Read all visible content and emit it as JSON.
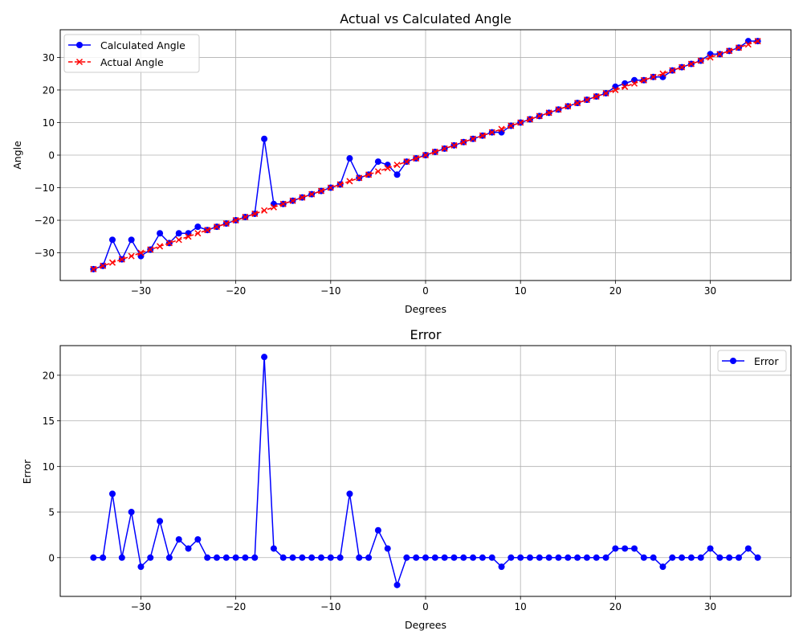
{
  "chart_data": [
    {
      "type": "line",
      "title": "Actual vs Calculated Angle",
      "xlabel": "Degrees",
      "ylabel": "Angle",
      "xlim": [
        -38.5,
        38.5
      ],
      "ylim": [
        -38.5,
        38.5
      ],
      "xticks": [
        -30,
        -20,
        -10,
        0,
        10,
        20,
        30
      ],
      "yticks": [
        -30,
        -20,
        -10,
        0,
        10,
        20,
        30
      ],
      "grid": true,
      "legend_position": "top-left",
      "x": [
        -35,
        -34,
        -33,
        -32,
        -31,
        -30,
        -29,
        -28,
        -27,
        -26,
        -25,
        -24,
        -23,
        -22,
        -21,
        -20,
        -19,
        -18,
        -17,
        -16,
        -15,
        -14,
        -13,
        -12,
        -11,
        -10,
        -9,
        -8,
        -7,
        -6,
        -5,
        -4,
        -3,
        -2,
        -1,
        0,
        1,
        2,
        3,
        4,
        5,
        6,
        7,
        8,
        9,
        10,
        11,
        12,
        13,
        14,
        15,
        16,
        17,
        18,
        19,
        20,
        21,
        22,
        23,
        24,
        25,
        26,
        27,
        28,
        29,
        30,
        31,
        32,
        33,
        34,
        35
      ],
      "series": [
        {
          "name": "Calculated Angle",
          "color": "#0000ff",
          "style": "solid",
          "marker": "circle",
          "values": [
            -35,
            -34,
            -26,
            -32,
            -26,
            -31,
            -29,
            -24,
            -27,
            -24,
            -24,
            -22,
            -23,
            -22,
            -21,
            -20,
            -19,
            -18,
            5,
            -15,
            -15,
            -14,
            -13,
            -12,
            -11,
            -10,
            -9,
            -1,
            -7,
            -6,
            -2,
            -3,
            -6,
            -2,
            -1,
            0,
            1,
            2,
            3,
            4,
            5,
            6,
            7,
            7,
            9,
            10,
            11,
            12,
            13,
            14,
            15,
            16,
            17,
            18,
            19,
            21,
            22,
            23,
            23,
            24,
            24,
            26,
            27,
            28,
            29,
            31,
            31,
            32,
            33,
            35,
            35
          ]
        },
        {
          "name": "Actual Angle",
          "color": "#ff0000",
          "style": "dashed",
          "marker": "x",
          "values": [
            -35,
            -34,
            -33,
            -32,
            -31,
            -30,
            -29,
            -28,
            -27,
            -26,
            -25,
            -24,
            -23,
            -22,
            -21,
            -20,
            -19,
            -18,
            -17,
            -16,
            -15,
            -14,
            -13,
            -12,
            -11,
            -10,
            -9,
            -8,
            -7,
            -6,
            -5,
            -4,
            -3,
            -2,
            -1,
            0,
            1,
            2,
            3,
            4,
            5,
            6,
            7,
            8,
            9,
            10,
            11,
            12,
            13,
            14,
            15,
            16,
            17,
            18,
            19,
            20,
            21,
            22,
            23,
            24,
            25,
            26,
            27,
            28,
            29,
            30,
            31,
            32,
            33,
            34,
            35
          ]
        }
      ]
    },
    {
      "type": "line",
      "title": "Error",
      "xlabel": "Degrees",
      "ylabel": "Error",
      "xlim": [
        -38.5,
        38.5
      ],
      "ylim": [
        -4.25,
        23.25
      ],
      "xticks": [
        -30,
        -20,
        -10,
        0,
        10,
        20,
        30
      ],
      "yticks": [
        0,
        5,
        10,
        15,
        20
      ],
      "grid": true,
      "legend_position": "top-right",
      "x": [
        -35,
        -34,
        -33,
        -32,
        -31,
        -30,
        -29,
        -28,
        -27,
        -26,
        -25,
        -24,
        -23,
        -22,
        -21,
        -20,
        -19,
        -18,
        -17,
        -16,
        -15,
        -14,
        -13,
        -12,
        -11,
        -10,
        -9,
        -8,
        -7,
        -6,
        -5,
        -4,
        -3,
        -2,
        -1,
        0,
        1,
        2,
        3,
        4,
        5,
        6,
        7,
        8,
        9,
        10,
        11,
        12,
        13,
        14,
        15,
        16,
        17,
        18,
        19,
        20,
        21,
        22,
        23,
        24,
        25,
        26,
        27,
        28,
        29,
        30,
        31,
        32,
        33,
        34,
        35
      ],
      "series": [
        {
          "name": "Error",
          "color": "#0000ff",
          "style": "solid",
          "marker": "circle",
          "values": [
            0,
            0,
            7,
            0,
            5,
            -1,
            0,
            4,
            0,
            2,
            1,
            2,
            0,
            0,
            0,
            0,
            0,
            0,
            22,
            1,
            0,
            0,
            0,
            0,
            0,
            0,
            0,
            7,
            0,
            0,
            3,
            1,
            -3,
            0,
            0,
            0,
            0,
            0,
            0,
            0,
            0,
            0,
            0,
            -1,
            0,
            0,
            0,
            0,
            0,
            0,
            0,
            0,
            0,
            0,
            0,
            1,
            1,
            1,
            0,
            0,
            -1,
            0,
            0,
            0,
            0,
            1,
            0,
            0,
            0,
            1,
            0
          ]
        }
      ]
    }
  ]
}
